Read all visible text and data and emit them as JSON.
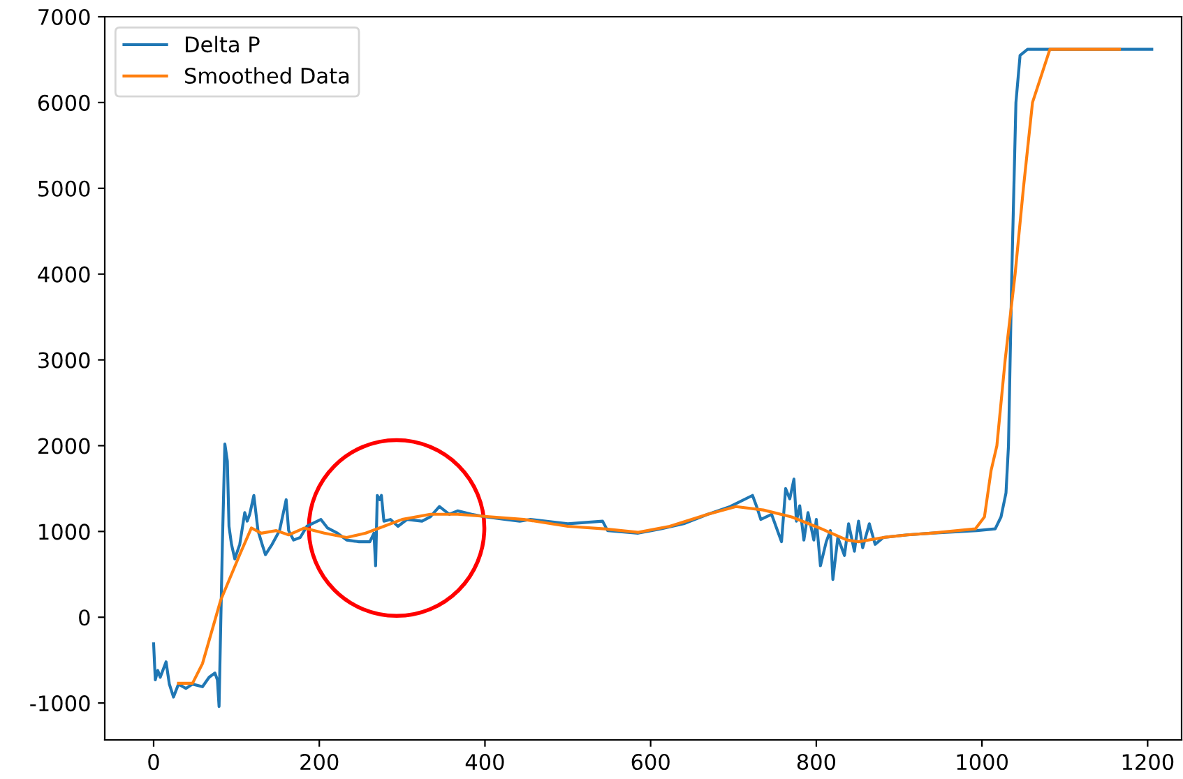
{
  "chart_data": {
    "type": "line",
    "xlim": [
      -59,
      1241
    ],
    "ylim": [
      -1430,
      7000
    ],
    "xticks": [
      0,
      200,
      400,
      600,
      800,
      1000,
      1200
    ],
    "yticks": [
      -1000,
      0,
      1000,
      2000,
      3000,
      4000,
      5000,
      6000,
      7000
    ],
    "grid": false,
    "legend": "top left",
    "line_style": "solid",
    "marker": "none",
    "series": [
      {
        "name": "Delta P",
        "color": "#1f77b4",
        "x": [
          0,
          2,
          5,
          8,
          15,
          19,
          24,
          30,
          39,
          47,
          59,
          67,
          74,
          77,
          79,
          83,
          86,
          89,
          91,
          94,
          98,
          104,
          110,
          113,
          116,
          121,
          126,
          131,
          135,
          143,
          152,
          160,
          163,
          169,
          177,
          185,
          202,
          210,
          222,
          233,
          248,
          261,
          266,
          268,
          270,
          273,
          275,
          278,
          286,
          295,
          306,
          324,
          334,
          345,
          357,
          367,
          384,
          401,
          425,
          442,
          455,
          500,
          542,
          548,
          585,
          612,
          640,
          669,
          696,
          723,
          728,
          733,
          746,
          758,
          763,
          768,
          773,
          776,
          780,
          785,
          790,
          797,
          800,
          805,
          812,
          817,
          820,
          826,
          834,
          839,
          846,
          851,
          856,
          864,
          871,
          881,
          910,
          938,
          994,
          1016,
          1023,
          1029,
          1032,
          1036,
          1041,
          1046,
          1055,
          1205
        ],
        "values": [
          -310,
          -730,
          -620,
          -700,
          -520,
          -780,
          -930,
          -780,
          -830,
          -780,
          -810,
          -700,
          -650,
          -730,
          -1040,
          850,
          2020,
          1820,
          1060,
          850,
          680,
          850,
          1220,
          1120,
          1200,
          1420,
          1010,
          850,
          730,
          850,
          1010,
          1370,
          1010,
          900,
          930,
          1060,
          1140,
          1040,
          980,
          900,
          880,
          880,
          980,
          600,
          1420,
          1370,
          1420,
          1120,
          1140,
          1060,
          1140,
          1120,
          1170,
          1290,
          1200,
          1240,
          1200,
          1170,
          1140,
          1120,
          1140,
          1090,
          1120,
          1010,
          980,
          1030,
          1090,
          1200,
          1290,
          1420,
          1290,
          1140,
          1200,
          880,
          1500,
          1380,
          1610,
          1120,
          1300,
          900,
          1220,
          900,
          1140,
          600,
          880,
          1010,
          440,
          930,
          720,
          1090,
          770,
          1120,
          810,
          1090,
          850,
          930,
          960,
          980,
          1010,
          1030,
          1170,
          1450,
          2000,
          4000,
          6000,
          6550,
          6620,
          6620
        ]
      },
      {
        "name": "Smoothed Data",
        "color": "#ff7f0e",
        "x": [
          30,
          47,
          59,
          81,
          104,
          118,
          130,
          148,
          163,
          182,
          206,
          233,
          256,
          278,
          300,
          334,
          367,
          408,
          447,
          500,
          544,
          585,
          623,
          669,
          703,
          736,
          770,
          804,
          837,
          851,
          881,
          910,
          938,
          992,
          1003,
          1011,
          1018,
          1028,
          1040,
          1050,
          1061,
          1082,
          1166
        ],
        "values": [
          -770,
          -770,
          -540,
          200,
          730,
          1040,
          980,
          1010,
          960,
          1040,
          980,
          930,
          980,
          1060,
          1140,
          1200,
          1200,
          1170,
          1140,
          1060,
          1030,
          990,
          1060,
          1200,
          1290,
          1250,
          1170,
          1040,
          900,
          880,
          930,
          960,
          980,
          1030,
          1170,
          1710,
          2000,
          3000,
          4000,
          5000,
          6000,
          6620,
          6620
        ]
      }
    ]
  }
}
